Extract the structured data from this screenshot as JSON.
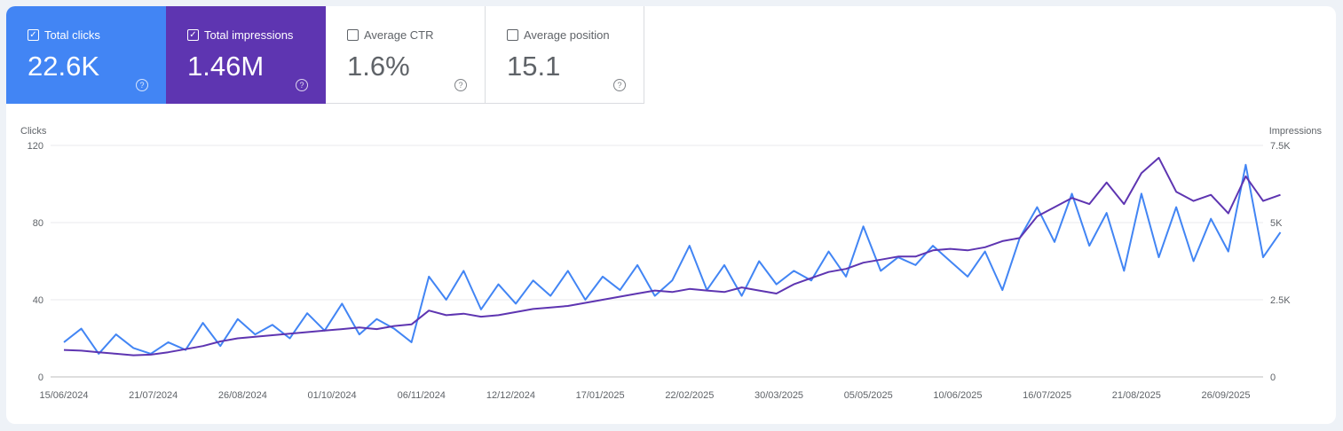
{
  "cards": [
    {
      "label": "Total clicks",
      "value": "22.6K",
      "checked": true,
      "color": "#4285f4"
    },
    {
      "label": "Total impressions",
      "value": "1.46M",
      "checked": true,
      "color": "#5e35b1"
    },
    {
      "label": "Average CTR",
      "value": "1.6%",
      "checked": false
    },
    {
      "label": "Average position",
      "value": "15.1",
      "checked": false
    }
  ],
  "icons": {
    "checkbox": "checkbox-icon",
    "help": "help-circle-icon"
  },
  "chart_data": {
    "type": "line",
    "ylabel_left": "Clicks",
    "ylabel_right": "Impressions",
    "ylim_left": [
      0,
      120
    ],
    "ylim_right": [
      0,
      7500
    ],
    "yticks_left": [
      "0",
      "40",
      "80",
      "120"
    ],
    "yticks_right": [
      "0",
      "2.5K",
      "5K",
      "7.5K"
    ],
    "xticks": [
      "15/06/2024",
      "21/07/2024",
      "26/08/2024",
      "01/10/2024",
      "06/11/2024",
      "12/12/2024",
      "17/01/2025",
      "22/02/2025",
      "30/03/2025",
      "05/05/2025",
      "10/06/2025",
      "16/07/2025",
      "21/08/2025",
      "26/09/2025"
    ],
    "grid": true,
    "x": [
      "2024-06-15",
      "2024-06-22",
      "2024-06-29",
      "2024-07-06",
      "2024-07-13",
      "2024-07-20",
      "2024-07-27",
      "2024-08-03",
      "2024-08-10",
      "2024-08-17",
      "2024-08-24",
      "2024-08-31",
      "2024-09-07",
      "2024-09-14",
      "2024-09-21",
      "2024-09-28",
      "2024-10-05",
      "2024-10-12",
      "2024-10-19",
      "2024-10-26",
      "2024-11-02",
      "2024-11-09",
      "2024-11-16",
      "2024-11-23",
      "2024-11-30",
      "2024-12-07",
      "2024-12-14",
      "2024-12-21",
      "2024-12-28",
      "2025-01-04",
      "2025-01-11",
      "2025-01-18",
      "2025-01-25",
      "2025-02-01",
      "2025-02-08",
      "2025-02-15",
      "2025-02-22",
      "2025-03-01",
      "2025-03-08",
      "2025-03-15",
      "2025-03-22",
      "2025-03-29",
      "2025-04-05",
      "2025-04-12",
      "2025-04-19",
      "2025-04-26",
      "2025-05-03",
      "2025-05-10",
      "2025-05-17",
      "2025-05-24",
      "2025-05-31",
      "2025-06-07",
      "2025-06-14",
      "2025-06-21",
      "2025-06-28",
      "2025-07-05",
      "2025-07-12",
      "2025-07-19",
      "2025-07-26",
      "2025-08-02",
      "2025-08-09",
      "2025-08-16",
      "2025-08-23",
      "2025-08-30",
      "2025-09-06",
      "2025-09-13",
      "2025-09-20",
      "2025-09-27",
      "2025-10-04",
      "2025-10-11",
      "2025-10-18"
    ],
    "series": [
      {
        "name": "Clicks",
        "axis": "left",
        "color": "#4285f4",
        "values": [
          18,
          25,
          12,
          22,
          15,
          12,
          18,
          14,
          28,
          16,
          30,
          22,
          27,
          20,
          33,
          24,
          38,
          22,
          30,
          25,
          18,
          52,
          40,
          55,
          35,
          48,
          38,
          50,
          42,
          55,
          40,
          52,
          45,
          58,
          42,
          50,
          68,
          45,
          58,
          42,
          60,
          48,
          55,
          50,
          65,
          52,
          78,
          55,
          62,
          58,
          68,
          60,
          52,
          65,
          45,
          72,
          88,
          70,
          95,
          68,
          85,
          55,
          95,
          62,
          88,
          60,
          82,
          65,
          110,
          62,
          75
        ]
      },
      {
        "name": "Impressions",
        "axis": "right",
        "color": "#5e35b1",
        "values": [
          875,
          850,
          800,
          750,
          700,
          720,
          800,
          900,
          1000,
          1150,
          1250,
          1300,
          1350,
          1400,
          1450,
          1500,
          1550,
          1600,
          1550,
          1650,
          1700,
          2150,
          2000,
          2050,
          1950,
          2000,
          2100,
          2200,
          2250,
          2300,
          2400,
          2500,
          2600,
          2700,
          2800,
          2750,
          2850,
          2800,
          2750,
          2900,
          2800,
          2700,
          3000,
          3200,
          3400,
          3500,
          3700,
          3800,
          3900,
          3900,
          4100,
          4150,
          4100,
          4200,
          4400,
          4500,
          5200,
          5500,
          5800,
          5600,
          6300,
          5600,
          6600,
          7100,
          6000,
          5700,
          5900,
          5300,
          6500,
          5700,
          5900
        ]
      }
    ]
  }
}
